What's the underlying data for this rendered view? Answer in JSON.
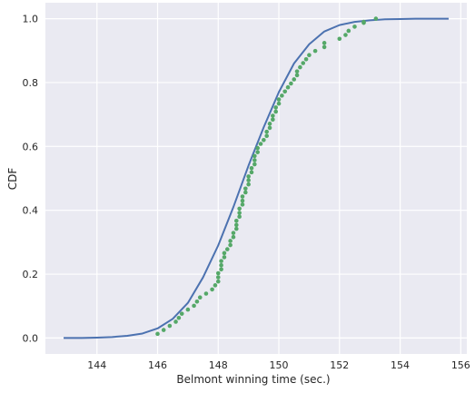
{
  "chart_data": {
    "type": "scatter",
    "title": "",
    "xlabel": "Belmont winning time (sec.)",
    "ylabel": "CDF",
    "xlim": [
      142.3,
      156.2
    ],
    "ylim": [
      -0.05,
      1.05
    ],
    "x_ticks": [
      144,
      146,
      148,
      150,
      152,
      154,
      156
    ],
    "x_tick_labels": [
      "144",
      "146",
      "148",
      "150",
      "152",
      "154",
      "156"
    ],
    "y_ticks": [
      0.0,
      0.2,
      0.4,
      0.6,
      0.8,
      1.0
    ],
    "y_tick_labels": [
      "0.0",
      "0.2",
      "0.4",
      "0.6",
      "0.8",
      "1.0"
    ],
    "grid": true,
    "background_color": "#eaeaf2",
    "grid_color": "#ffffff",
    "series": [
      {
        "kind": "line",
        "color": "#4c72b0",
        "x": [
          142.9,
          143.5,
          144.0,
          144.5,
          145.0,
          145.5,
          146.0,
          146.5,
          147.0,
          147.5,
          148.0,
          148.5,
          149.0,
          149.5,
          150.0,
          150.5,
          151.0,
          151.5,
          152.0,
          152.5,
          153.0,
          153.5,
          154.0,
          154.5,
          155.0,
          155.6
        ],
        "values": [
          0.0,
          0.0,
          0.001,
          0.003,
          0.007,
          0.014,
          0.03,
          0.06,
          0.11,
          0.19,
          0.29,
          0.41,
          0.54,
          0.66,
          0.77,
          0.86,
          0.92,
          0.96,
          0.98,
          0.99,
          0.995,
          0.998,
          0.999,
          1.0,
          1.0,
          1.0
        ]
      },
      {
        "kind": "points",
        "color": "#55a868",
        "x": [
          146.0,
          146.2,
          146.4,
          146.6,
          146.7,
          146.8,
          147.0,
          147.2,
          147.3,
          147.4,
          147.6,
          147.8,
          147.9,
          148.0,
          148.0,
          148.0,
          148.1,
          148.1,
          148.1,
          148.2,
          148.2,
          148.3,
          148.4,
          148.4,
          148.5,
          148.5,
          148.6,
          148.6,
          148.6,
          148.7,
          148.7,
          148.7,
          148.8,
          148.8,
          148.8,
          148.9,
          148.9,
          149.0,
          149.0,
          149.0,
          149.1,
          149.1,
          149.2,
          149.2,
          149.2,
          149.3,
          149.3,
          149.4,
          149.5,
          149.6,
          149.6,
          149.7,
          149.7,
          149.8,
          149.8,
          149.9,
          149.9,
          150.0,
          150.0,
          150.1,
          150.2,
          150.3,
          150.4,
          150.5,
          150.6,
          150.6,
          150.7,
          150.8,
          150.9,
          151.0,
          151.2,
          151.5,
          151.5,
          152.0,
          152.2,
          152.3,
          152.5,
          152.8,
          152.8,
          153.2
        ],
        "values": [
          0.013,
          0.025,
          0.038,
          0.051,
          0.063,
          0.076,
          0.089,
          0.101,
          0.114,
          0.127,
          0.139,
          0.152,
          0.165,
          0.177,
          0.19,
          0.203,
          0.215,
          0.228,
          0.241,
          0.253,
          0.266,
          0.278,
          0.291,
          0.304,
          0.316,
          0.329,
          0.342,
          0.354,
          0.367,
          0.38,
          0.392,
          0.405,
          0.418,
          0.43,
          0.443,
          0.456,
          0.468,
          0.481,
          0.494,
          0.506,
          0.519,
          0.532,
          0.544,
          0.557,
          0.57,
          0.582,
          0.595,
          0.608,
          0.62,
          0.633,
          0.646,
          0.658,
          0.671,
          0.684,
          0.696,
          0.709,
          0.722,
          0.734,
          0.747,
          0.759,
          0.772,
          0.785,
          0.797,
          0.81,
          0.823,
          0.835,
          0.848,
          0.861,
          0.873,
          0.886,
          0.899,
          0.911,
          0.924,
          0.937,
          0.949,
          0.962,
          0.975,
          0.987,
          0.99,
          1.0
        ]
      }
    ]
  }
}
